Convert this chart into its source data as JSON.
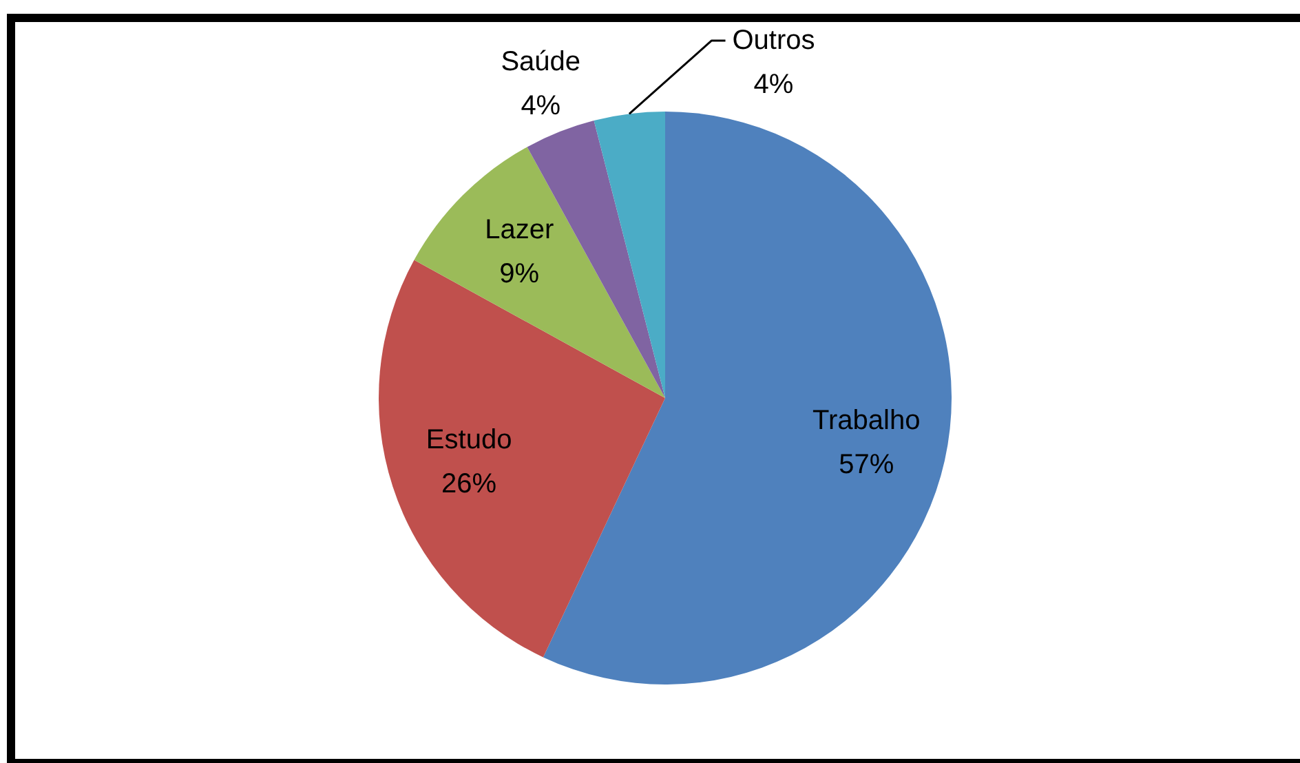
{
  "chart_data": {
    "type": "pie",
    "categories": [
      "Trabalho",
      "Estudo",
      "Lazer",
      "Saúde",
      "Outros"
    ],
    "values": [
      57,
      26,
      9,
      4,
      4
    ],
    "colors": [
      "#4f81bd",
      "#c0504d",
      "#9bbb59",
      "#8064a2",
      "#4bacc6"
    ],
    "value_labels": [
      "57%",
      "26%",
      "9%",
      "4%",
      "4%"
    ]
  }
}
